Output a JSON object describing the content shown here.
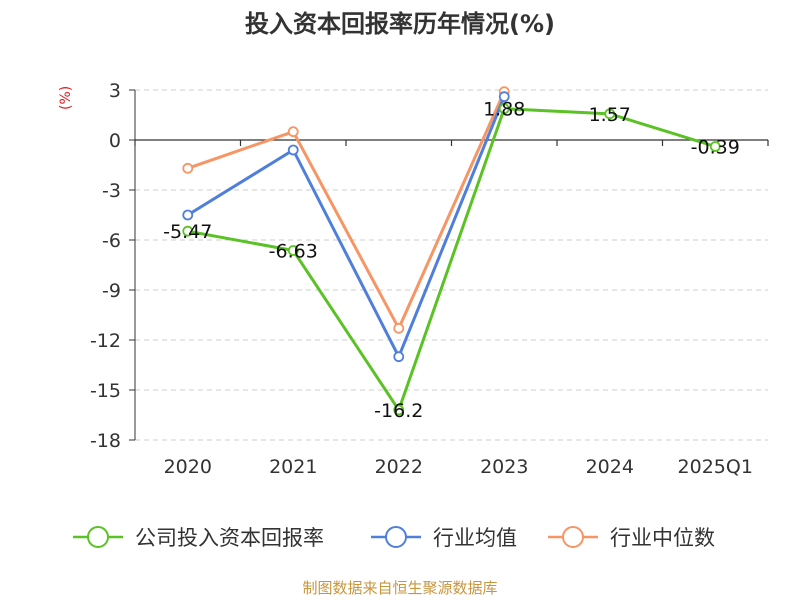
{
  "colors": {
    "company": "#5bc225",
    "average": "#4f7fdb",
    "median": "#f79564",
    "unit": "#e02020",
    "source": "#c8963c"
  },
  "chart_data": {
    "type": "line",
    "title": "投入资本回报率历年情况(%)",
    "ylabel": "(%)",
    "categories": [
      "2020",
      "2021",
      "2022",
      "2023",
      "2024",
      "2025Q1"
    ],
    "yticks": [
      "3",
      "0",
      "-3",
      "-6",
      "-9",
      "-12",
      "-15",
      "-18"
    ],
    "ylim": [
      -18,
      3
    ],
    "grid": true,
    "legend_position": "bottom",
    "series": [
      {
        "name": "公司投入资本回报率",
        "color_key": "company",
        "values": [
          -5.47,
          -6.63,
          -16.2,
          1.88,
          1.57,
          -0.39
        ],
        "labels": [
          "-5.47",
          "-6.63",
          "-16.2",
          "1.88",
          "1.57",
          "-0.39"
        ]
      },
      {
        "name": "行业均值",
        "color_key": "average",
        "values": [
          -4.5,
          -0.6,
          -13.0,
          2.6,
          null,
          null
        ]
      },
      {
        "name": "行业中位数",
        "color_key": "median",
        "values": [
          -1.7,
          0.5,
          -11.3,
          2.9,
          null,
          null
        ]
      }
    ]
  },
  "footer": {
    "source": "制图数据来自恒生聚源数据库"
  }
}
